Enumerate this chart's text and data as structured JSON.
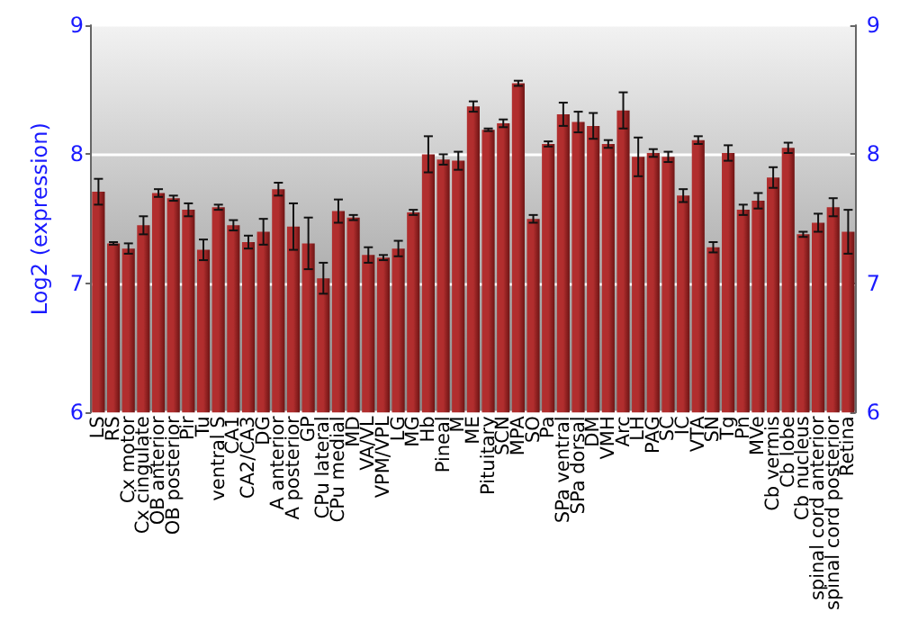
{
  "chart_data": {
    "type": "bar",
    "ylabel": "Log2 (expression)",
    "categories": [
      "LS",
      "RS",
      "Cx motor",
      "Cx cingulate",
      "OB anterior",
      "OB posterior",
      "Pir",
      "Tu",
      "ventral S",
      "CA1",
      "CA2/CA3",
      "DG",
      "A anterior",
      "A posterior",
      "GP",
      "CPu lateral",
      "CPu medial",
      "MD",
      "VA/VL",
      "VPM/VPL",
      "LG",
      "MG",
      "Hb",
      "Pineal",
      "M",
      "ME",
      "Pituitary",
      "SCN",
      "MPA",
      "SO",
      "Pa",
      "SPa ventral",
      "SPa dorsal",
      "DM",
      "VMH",
      "Arc",
      "LH",
      "PAG",
      "SC",
      "IC",
      "VTA",
      "SN",
      "Tg",
      "Pn",
      "MVe",
      "Cb vermis",
      "Cb lobe",
      "Cb nucleus",
      "spinal cord anterior",
      "spinal cord posterior",
      "Retina"
    ],
    "values": [
      7.71,
      7.31,
      7.27,
      7.45,
      7.7,
      7.66,
      7.57,
      7.26,
      7.59,
      7.45,
      7.32,
      7.4,
      7.73,
      7.44,
      7.31,
      7.04,
      7.56,
      7.51,
      7.22,
      7.2,
      7.27,
      7.55,
      8.0,
      7.96,
      7.95,
      8.37,
      8.19,
      8.24,
      8.55,
      7.5,
      8.08,
      8.31,
      8.25,
      8.22,
      8.08,
      8.34,
      7.98,
      8.01,
      7.98,
      7.68,
      8.11,
      7.28,
      8.01,
      7.57,
      7.64,
      7.82,
      8.05,
      7.38,
      7.47,
      7.59,
      7.4
    ],
    "errors": [
      0.1,
      0.01,
      0.04,
      0.07,
      0.03,
      0.02,
      0.05,
      0.08,
      0.02,
      0.04,
      0.05,
      0.1,
      0.05,
      0.18,
      0.2,
      0.12,
      0.09,
      0.02,
      0.06,
      0.02,
      0.06,
      0.02,
      0.14,
      0.04,
      0.07,
      0.04,
      0.01,
      0.03,
      0.02,
      0.03,
      0.02,
      0.09,
      0.08,
      0.1,
      0.03,
      0.14,
      0.15,
      0.03,
      0.04,
      0.05,
      0.03,
      0.04,
      0.06,
      0.04,
      0.06,
      0.08,
      0.04,
      0.02,
      0.07,
      0.07,
      0.17
    ],
    "color": "#b12e2e",
    "ylim": [
      6,
      9
    ],
    "yticks": [
      6,
      7,
      8,
      9
    ],
    "y2lim": [
      6,
      9
    ],
    "y2ticks": [
      6,
      7,
      8,
      9
    ],
    "grid": "y"
  }
}
